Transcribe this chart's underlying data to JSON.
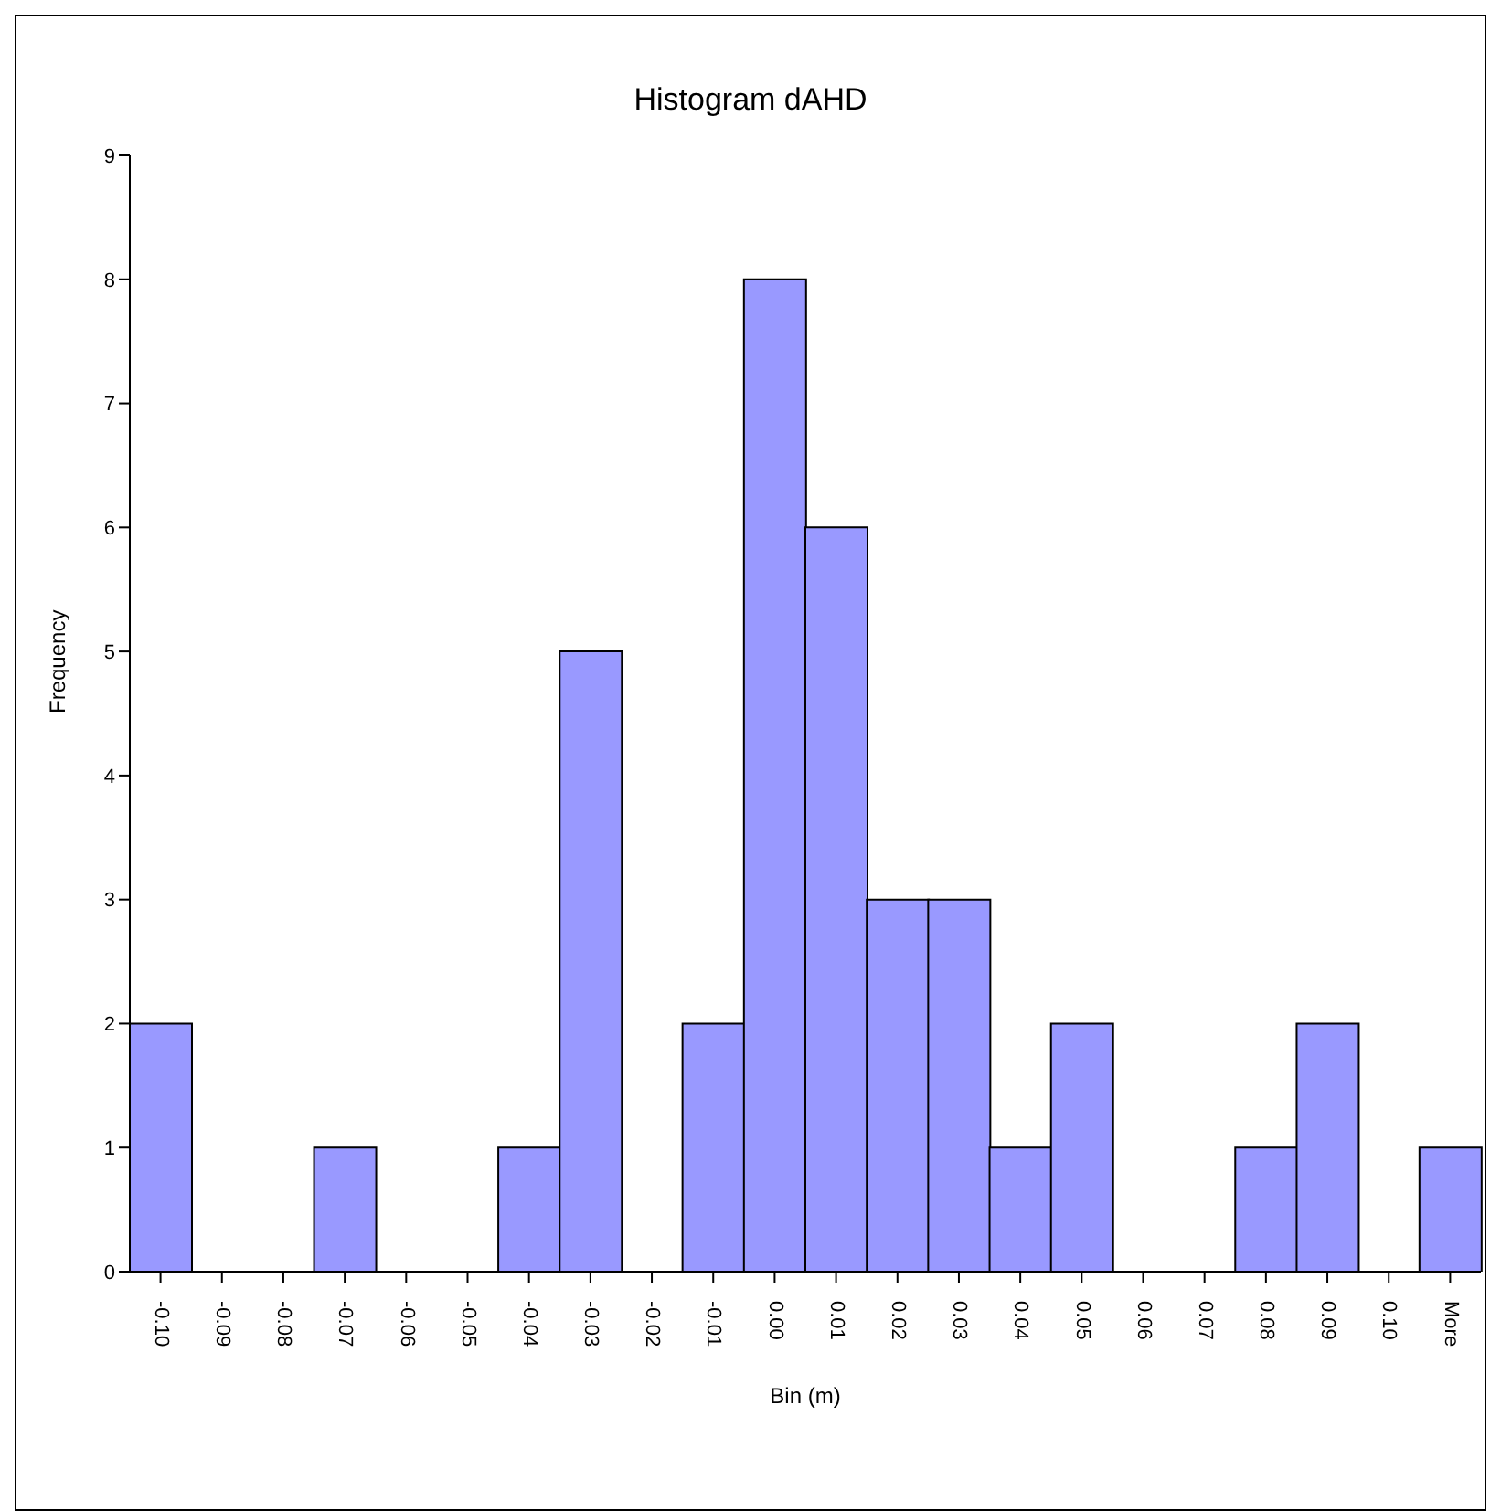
{
  "chart_data": {
    "type": "bar",
    "title": "Histogram dAHD",
    "xlabel": "Bin (m)",
    "ylabel": "Frequency",
    "categories": [
      "-0.10",
      "-0.09",
      "-0.08",
      "-0.07",
      "-0.06",
      "-0.05",
      "-0.04",
      "-0.03",
      "-0.02",
      "-0.01",
      "0.00",
      "0.01",
      "0.02",
      "0.03",
      "0.04",
      "0.05",
      "0.06",
      "0.07",
      "0.08",
      "0.09",
      "0.10",
      "More"
    ],
    "values": [
      2,
      0,
      0,
      1,
      0,
      0,
      1,
      5,
      0,
      2,
      8,
      6,
      3,
      3,
      1,
      2,
      0,
      0,
      1,
      2,
      0,
      1
    ],
    "color": "#9999ff",
    "ylim": [
      0,
      9
    ],
    "yticks": [
      0,
      1,
      2,
      3,
      4,
      5,
      6,
      7,
      8,
      9
    ],
    "grid": false,
    "legend": false
  }
}
